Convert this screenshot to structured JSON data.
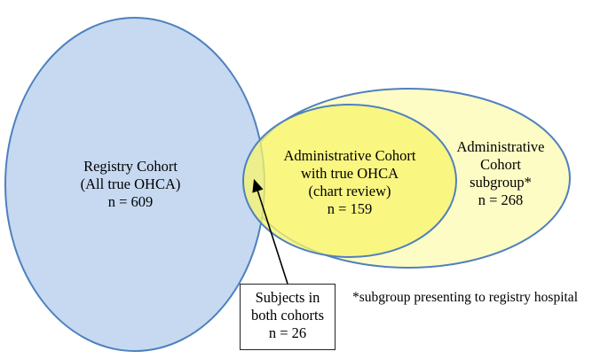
{
  "colors": {
    "registry_fill": "#c6d9f1",
    "registry_stroke": "#4f81bd",
    "subgroup_fill": "#fdfcc4",
    "subgroup_stroke": "#4f81bd",
    "true_ohca_fill": "#f7f46f",
    "true_ohca_stroke": "#4f81bd",
    "arrow": "#000000"
  },
  "registry": {
    "line1": "Registry Cohort",
    "line2": "(All true OHCA)",
    "count": "n = 609"
  },
  "true_ohca": {
    "line1": "Administrative Cohort",
    "line2": "with true OHCA",
    "line3": "(chart review)",
    "count": "n =  159"
  },
  "subgroup": {
    "line1": "Administrative",
    "line2": "Cohort",
    "line3": "subgroup*",
    "count": "n = 268"
  },
  "overlap": {
    "line1": "Subjects in",
    "line2": "both cohorts",
    "count": "n = 26"
  },
  "footnote": "*subgroup presenting to registry hospital"
}
